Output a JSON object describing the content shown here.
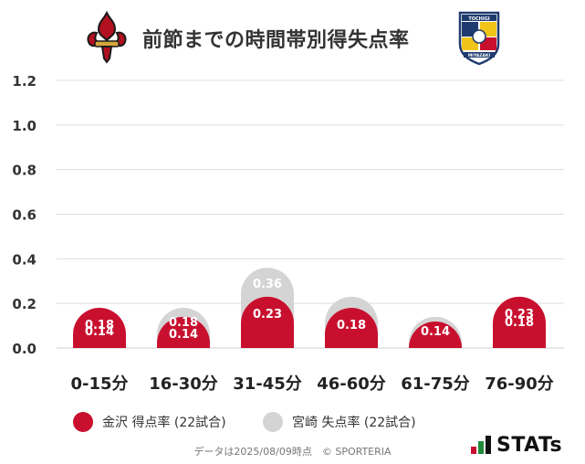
{
  "header": {
    "title": "前節までの時間帯別得失点率",
    "home_crest_icon": "fleur-de-lis-crest-icon",
    "away_crest_icon": "shield-crest-icon",
    "away_crest_text_top": "TOCHIGI",
    "away_crest_text_bottom": "MIYAZAKI"
  },
  "colors": {
    "home": "#c8102e",
    "away": "#d4d4d4",
    "grid": "#dddddd",
    "baseline": "#cfcfcf"
  },
  "legend": {
    "home_label": "金沢 得点率 (22試合)",
    "away_label": "宮崎 失点率 (22試合)"
  },
  "chart_data": {
    "type": "bar",
    "categories": [
      "0-15分",
      "16-30分",
      "31-45分",
      "46-60分",
      "61-75分",
      "76-90分"
    ],
    "series": [
      {
        "name": "金沢 得点率 (22試合)",
        "values": [
          0.18,
          0.14,
          0.23,
          0.18,
          0.09,
          0.23
        ],
        "labels": [
          "0.18",
          "0.14",
          "0.23",
          "0.18",
          "",
          "0.23"
        ]
      },
      {
        "name": "宮崎 失点率 (22試合)",
        "values": [
          0.14,
          0.18,
          0.36,
          0.23,
          0.14,
          0.18
        ],
        "labels": [
          "0.14",
          "0.18",
          "0.36",
          "",
          "0.14",
          "0.18"
        ]
      }
    ],
    "yticks": [
      "0.0",
      "0.2",
      "0.4",
      "0.6",
      "0.8",
      "1.0",
      "1.2"
    ],
    "ylim": [
      0,
      1.2
    ],
    "grid": true,
    "legend_position": "bottom-left",
    "overlapping": true
  },
  "footer": {
    "note": "データは2025/08/09時点　© SPORTERIA",
    "brand": "STATs"
  }
}
